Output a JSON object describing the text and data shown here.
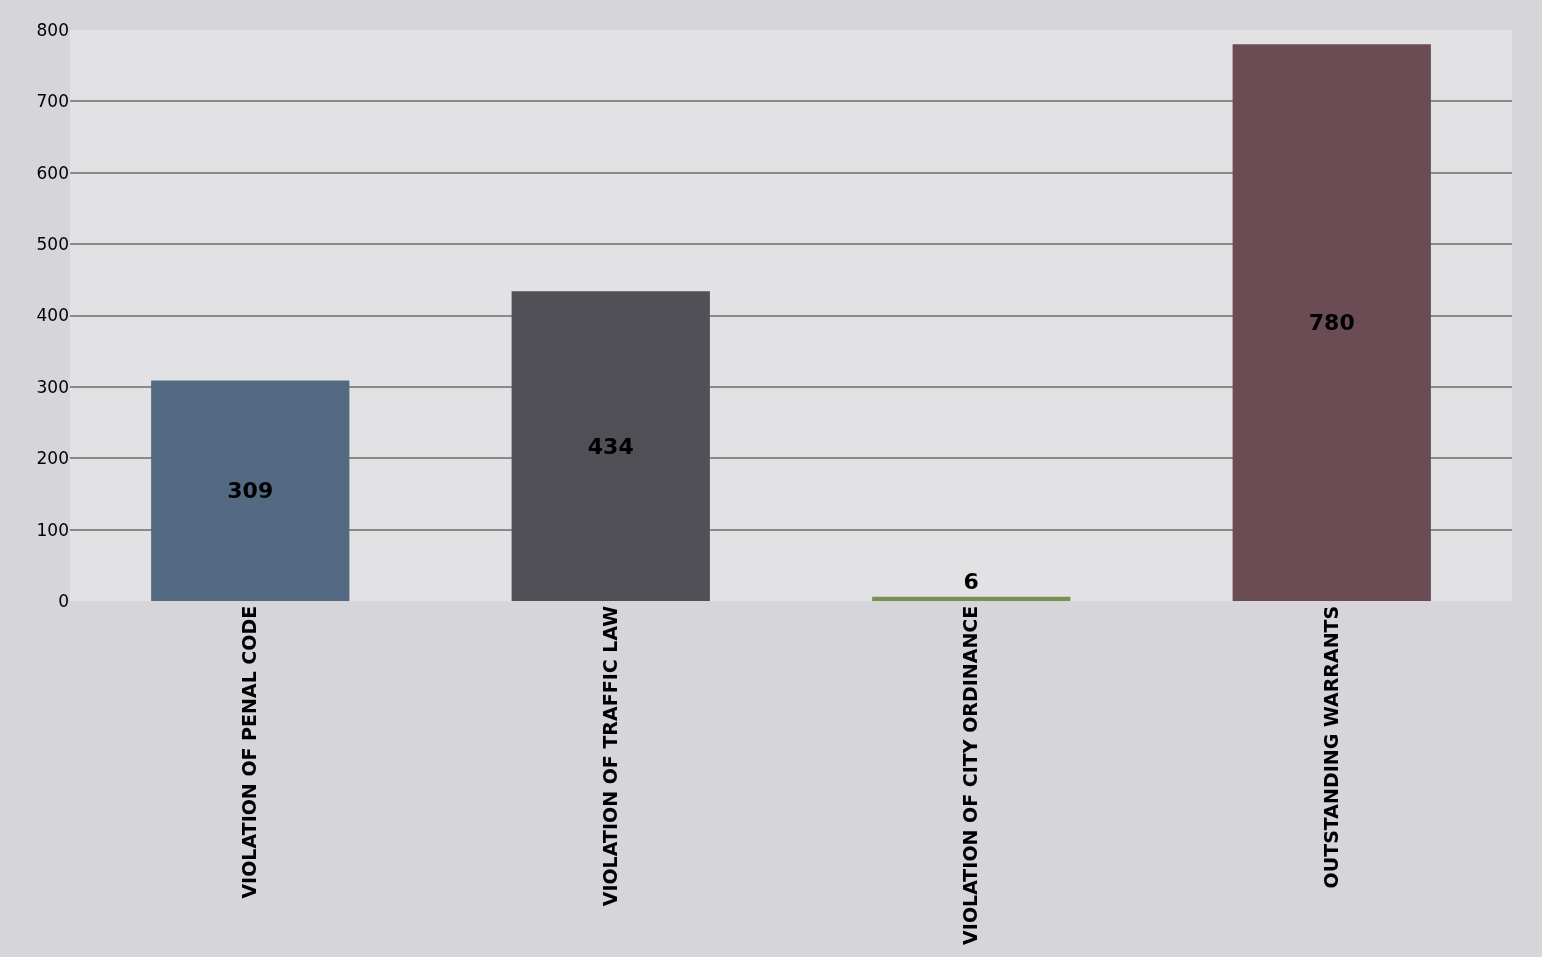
{
  "chart_data": {
    "type": "bar",
    "categories": [
      "VIOLATION OF PENAL CODE",
      "VIOLATION OF TRAFFIC LAW",
      "VIOLATION OF CITY ORDINANCE",
      "OUTSTANDING WARRANTS"
    ],
    "values": [
      309,
      434,
      6,
      780
    ],
    "colors": [
      "#536a82",
      "#515057",
      "#77924f",
      "#6b4c55"
    ],
    "ylim": [
      0,
      800
    ],
    "yticks": [
      0,
      100,
      200,
      300,
      400,
      500,
      600,
      700,
      800
    ],
    "grid": "y",
    "data_labels": true
  }
}
